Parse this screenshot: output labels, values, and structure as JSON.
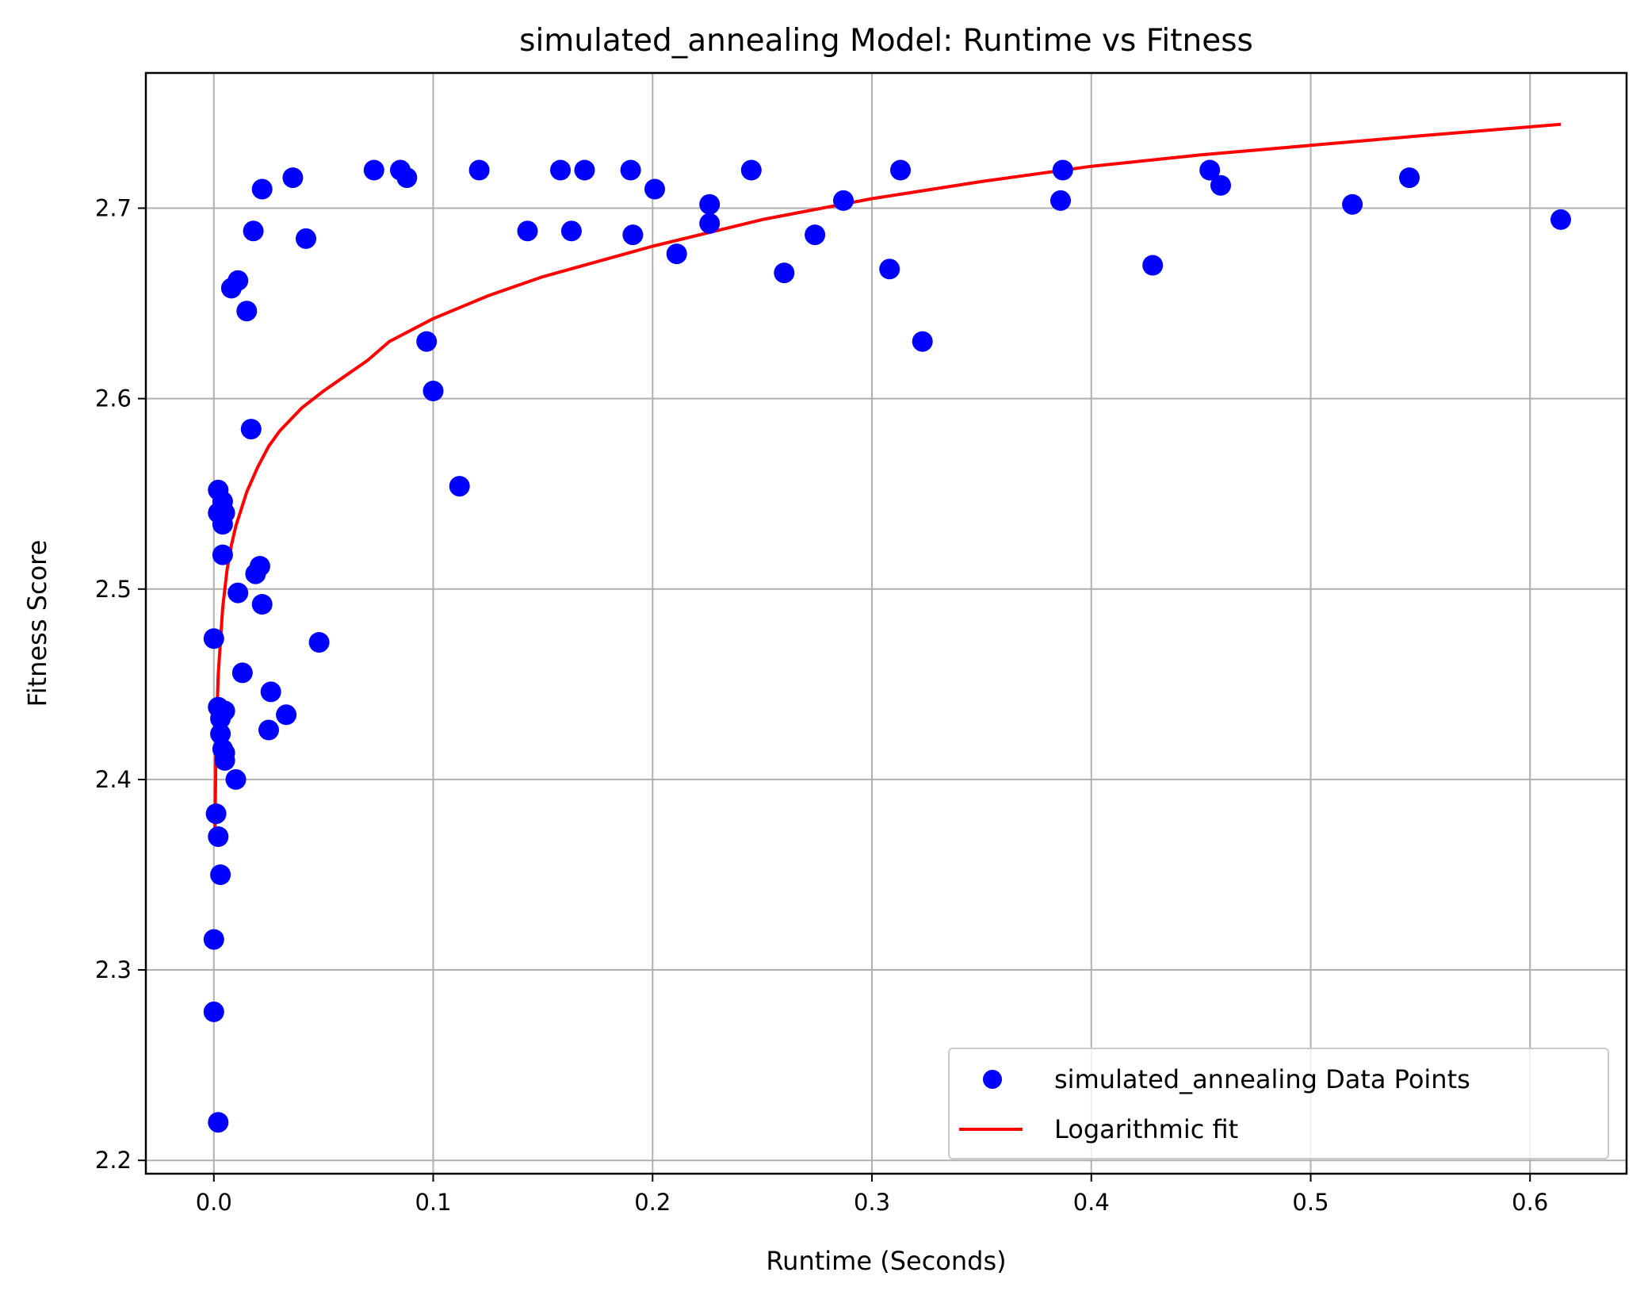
{
  "chart_data": {
    "type": "scatter",
    "title": "simulated_annealing Model: Runtime vs Fitness",
    "xlabel": "Runtime (Seconds)",
    "ylabel": "Fitness Score",
    "xlim": [
      -0.031,
      0.644
    ],
    "ylim": [
      2.193,
      2.771
    ],
    "xticks": [
      "0.0",
      "0.1",
      "0.2",
      "0.3",
      "0.4",
      "0.5",
      "0.6"
    ],
    "xtick_values": [
      0.0,
      0.1,
      0.2,
      0.3,
      0.4,
      0.5,
      0.6
    ],
    "yticks": [
      "2.2",
      "2.3",
      "2.4",
      "2.5",
      "2.6",
      "2.7"
    ],
    "ytick_values": [
      2.2,
      2.3,
      2.4,
      2.5,
      2.6,
      2.7
    ],
    "grid": true,
    "legend_position": "lower-right",
    "series": [
      {
        "name": "simulated_annealing Data Points",
        "kind": "scatter",
        "color": "#0000ff",
        "points": [
          [
            0.002,
            2.552
          ],
          [
            0.002,
            2.54
          ],
          [
            0.004,
            2.546
          ],
          [
            0.004,
            2.534
          ],
          [
            0.005,
            2.54
          ],
          [
            0.004,
            2.518
          ],
          [
            0.0,
            2.474
          ],
          [
            0.002,
            2.438
          ],
          [
            0.003,
            2.432
          ],
          [
            0.005,
            2.436
          ],
          [
            0.003,
            2.424
          ],
          [
            0.004,
            2.416
          ],
          [
            0.005,
            2.414
          ],
          [
            0.005,
            2.41
          ],
          [
            0.01,
            2.4
          ],
          [
            0.001,
            2.382
          ],
          [
            0.002,
            2.37
          ],
          [
            0.003,
            2.35
          ],
          [
            0.0,
            2.316
          ],
          [
            0.0,
            2.278
          ],
          [
            0.002,
            2.22
          ],
          [
            0.008,
            2.658
          ],
          [
            0.011,
            2.662
          ],
          [
            0.015,
            2.646
          ],
          [
            0.018,
            2.688
          ],
          [
            0.022,
            2.71
          ],
          [
            0.017,
            2.584
          ],
          [
            0.011,
            2.498
          ],
          [
            0.013,
            2.456
          ],
          [
            0.019,
            2.508
          ],
          [
            0.021,
            2.512
          ],
          [
            0.022,
            2.492
          ],
          [
            0.026,
            2.446
          ],
          [
            0.025,
            2.426
          ],
          [
            0.033,
            2.434
          ],
          [
            0.036,
            2.716
          ],
          [
            0.042,
            2.684
          ],
          [
            0.048,
            2.472
          ],
          [
            0.073,
            2.72
          ],
          [
            0.085,
            2.72
          ],
          [
            0.088,
            2.716
          ],
          [
            0.097,
            2.63
          ],
          [
            0.1,
            2.604
          ],
          [
            0.112,
            2.554
          ],
          [
            0.121,
            2.72
          ],
          [
            0.143,
            2.688
          ],
          [
            0.158,
            2.72
          ],
          [
            0.163,
            2.688
          ],
          [
            0.169,
            2.72
          ],
          [
            0.19,
            2.72
          ],
          [
            0.191,
            2.686
          ],
          [
            0.201,
            2.71
          ],
          [
            0.211,
            2.676
          ],
          [
            0.226,
            2.702
          ],
          [
            0.226,
            2.692
          ],
          [
            0.245,
            2.72
          ],
          [
            0.26,
            2.666
          ],
          [
            0.274,
            2.686
          ],
          [
            0.287,
            2.704
          ],
          [
            0.308,
            2.668
          ],
          [
            0.313,
            2.72
          ],
          [
            0.323,
            2.63
          ],
          [
            0.387,
            2.72
          ],
          [
            0.386,
            2.704
          ],
          [
            0.428,
            2.67
          ],
          [
            0.454,
            2.72
          ],
          [
            0.459,
            2.712
          ],
          [
            0.519,
            2.702
          ],
          [
            0.545,
            2.716
          ],
          [
            0.614,
            2.694
          ]
        ]
      },
      {
        "name": "Logarithmic fit",
        "kind": "line",
        "color": "#ff0000",
        "points": [
          [
            0.0005,
            2.374
          ],
          [
            0.001,
            2.42
          ],
          [
            0.002,
            2.455
          ],
          [
            0.004,
            2.49
          ],
          [
            0.006,
            2.51
          ],
          [
            0.008,
            2.523
          ],
          [
            0.01,
            2.533
          ],
          [
            0.015,
            2.551
          ],
          [
            0.02,
            2.564
          ],
          [
            0.025,
            2.575
          ],
          [
            0.03,
            2.583
          ],
          [
            0.04,
            2.595
          ],
          [
            0.05,
            2.604
          ],
          [
            0.06,
            2.612
          ],
          [
            0.07,
            2.62
          ],
          [
            0.08,
            2.63
          ],
          [
            0.1,
            2.642
          ],
          [
            0.125,
            2.654
          ],
          [
            0.15,
            2.664
          ],
          [
            0.175,
            2.672
          ],
          [
            0.2,
            2.68
          ],
          [
            0.25,
            2.694
          ],
          [
            0.3,
            2.705
          ],
          [
            0.35,
            2.714
          ],
          [
            0.4,
            2.722
          ],
          [
            0.45,
            2.728
          ],
          [
            0.5,
            2.733
          ],
          [
            0.55,
            2.738
          ],
          [
            0.614,
            2.744
          ]
        ]
      }
    ]
  }
}
